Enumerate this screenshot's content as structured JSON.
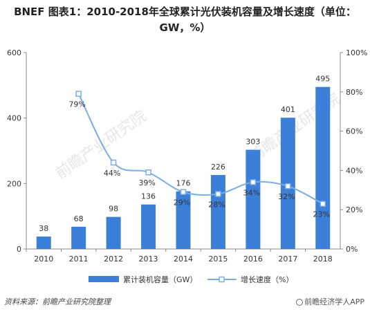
{
  "title_line1": "BNEF 图表1：2010-2018年全球累计光伏装机容量及增长速度（单位：",
  "title_line2": "GW，%）",
  "source": "资料来源：前瞻产业研究院整理",
  "brand": "前瞻经济学人APP",
  "watermark": "前瞻产业研究院",
  "colors": {
    "bar": "#3b7fd9",
    "line": "#7aaee3",
    "axis": "#888888"
  },
  "chart_data": {
    "type": "bar+line",
    "categories": [
      "2010",
      "2011",
      "2012",
      "2013",
      "2014",
      "2015",
      "2016",
      "2017",
      "2018"
    ],
    "series": [
      {
        "name": "累计装机容量（GW）",
        "type": "bar",
        "axis": "left",
        "values": [
          38,
          68,
          98,
          136,
          176,
          226,
          303,
          401,
          495
        ],
        "labels": [
          "38",
          "68",
          "98",
          "136",
          "176",
          "226",
          "303",
          "401",
          "495"
        ]
      },
      {
        "name": "增长速度（%）",
        "type": "line",
        "axis": "right",
        "values": [
          null,
          79,
          44,
          39,
          29,
          28,
          34,
          32,
          23
        ],
        "labels": [
          "",
          "79%",
          "44%",
          "39%",
          "29%",
          "28%",
          "34%",
          "32%",
          "23%"
        ]
      }
    ],
    "y_left": {
      "min": 0,
      "max": 600,
      "ticks": [
        "0",
        "200",
        "400",
        "600"
      ]
    },
    "y_right": {
      "min": 0,
      "max": 100,
      "ticks": [
        "0%",
        "20%",
        "40%",
        "60%",
        "80%",
        "100%"
      ]
    },
    "grid": false,
    "legend_position": "bottom"
  }
}
